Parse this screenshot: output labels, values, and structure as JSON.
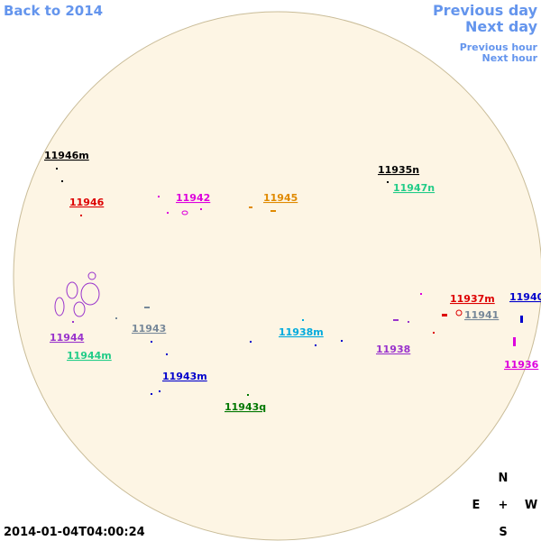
{
  "nav": {
    "back": "Back to 2014",
    "previous_day": "Previous day",
    "next_day": "Next day",
    "previous_hour": "Previous hour",
    "next_hour": "Next hour"
  },
  "regions": [
    {
      "label": "11946m",
      "color": "#000000"
    },
    {
      "label": "11946",
      "color": "#dd0000"
    },
    {
      "label": "11942",
      "color": "#dd00dd"
    },
    {
      "label": "11945",
      "color": "#e08a00"
    },
    {
      "label": "11935n",
      "color": "#000000"
    },
    {
      "label": "11947n",
      "color": "#22cc88"
    },
    {
      "label": "11937m",
      "color": "#dd0000"
    },
    {
      "label": "11940",
      "color": "#0000cc"
    },
    {
      "label": "11941",
      "color": "#778899"
    },
    {
      "label": "11943",
      "color": "#778899"
    },
    {
      "label": "11944",
      "color": "#9933cc"
    },
    {
      "label": "11944m",
      "color": "#22cc88"
    },
    {
      "label": "11938m",
      "color": "#00aadd"
    },
    {
      "label": "11938",
      "color": "#9933cc"
    },
    {
      "label": "11936",
      "color": "#dd00dd"
    },
    {
      "label": "11943m",
      "color": "#0000cc"
    },
    {
      "label": "11943q",
      "color": "#007700"
    }
  ],
  "compass": {
    "north": "N",
    "east": "E",
    "center": "+",
    "west": "W",
    "south": "S"
  },
  "timestamp": "2014-01-04T04:00:24"
}
